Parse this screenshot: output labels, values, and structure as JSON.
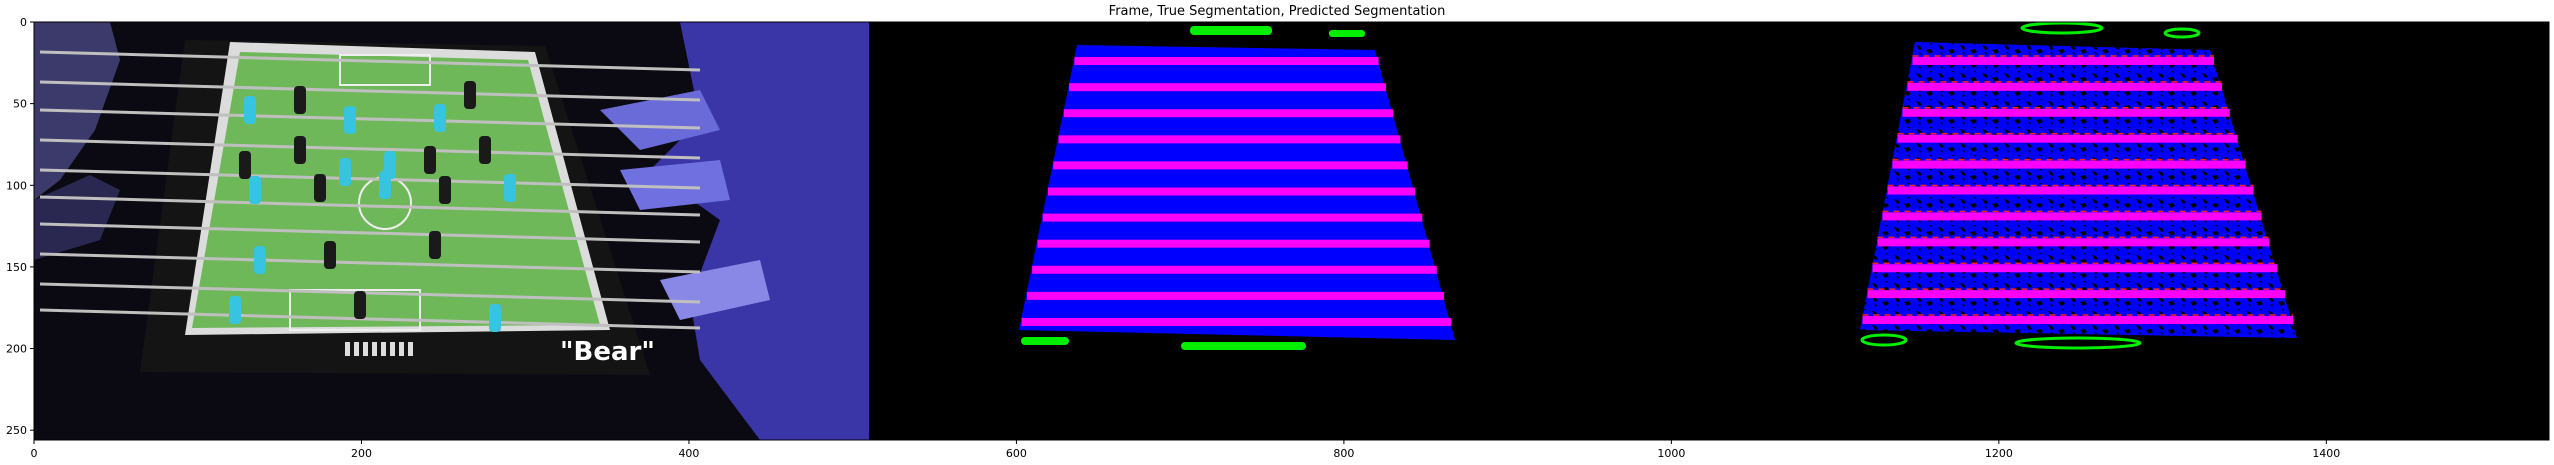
{
  "figure": {
    "title": "Frame, True Segmentation, Predicted Segmentation"
  },
  "axes": {
    "x_ticks": [
      0,
      200,
      400,
      600,
      800,
      1000,
      1200,
      1400
    ],
    "y_ticks": [
      0,
      50,
      100,
      150,
      200,
      250
    ],
    "x_range": [
      0,
      1536
    ],
    "y_range": [
      0,
      256
    ]
  },
  "panels": [
    {
      "name": "frame",
      "caption_text": "\"Bear\""
    },
    {
      "name": "true-segmentation"
    },
    {
      "name": "predicted-segmentation"
    }
  ],
  "colors": {
    "table_field": "#6fb85a",
    "table_frame": "#141414",
    "player_black": "#1a1a1a",
    "player_cyan": "#37c4e0",
    "hand_blue": "#5a5ae0",
    "seg_blue": "#0000ff",
    "seg_magenta": "#ff00ff",
    "seg_green": "#00ee00",
    "seg_red": "#ff2020"
  }
}
